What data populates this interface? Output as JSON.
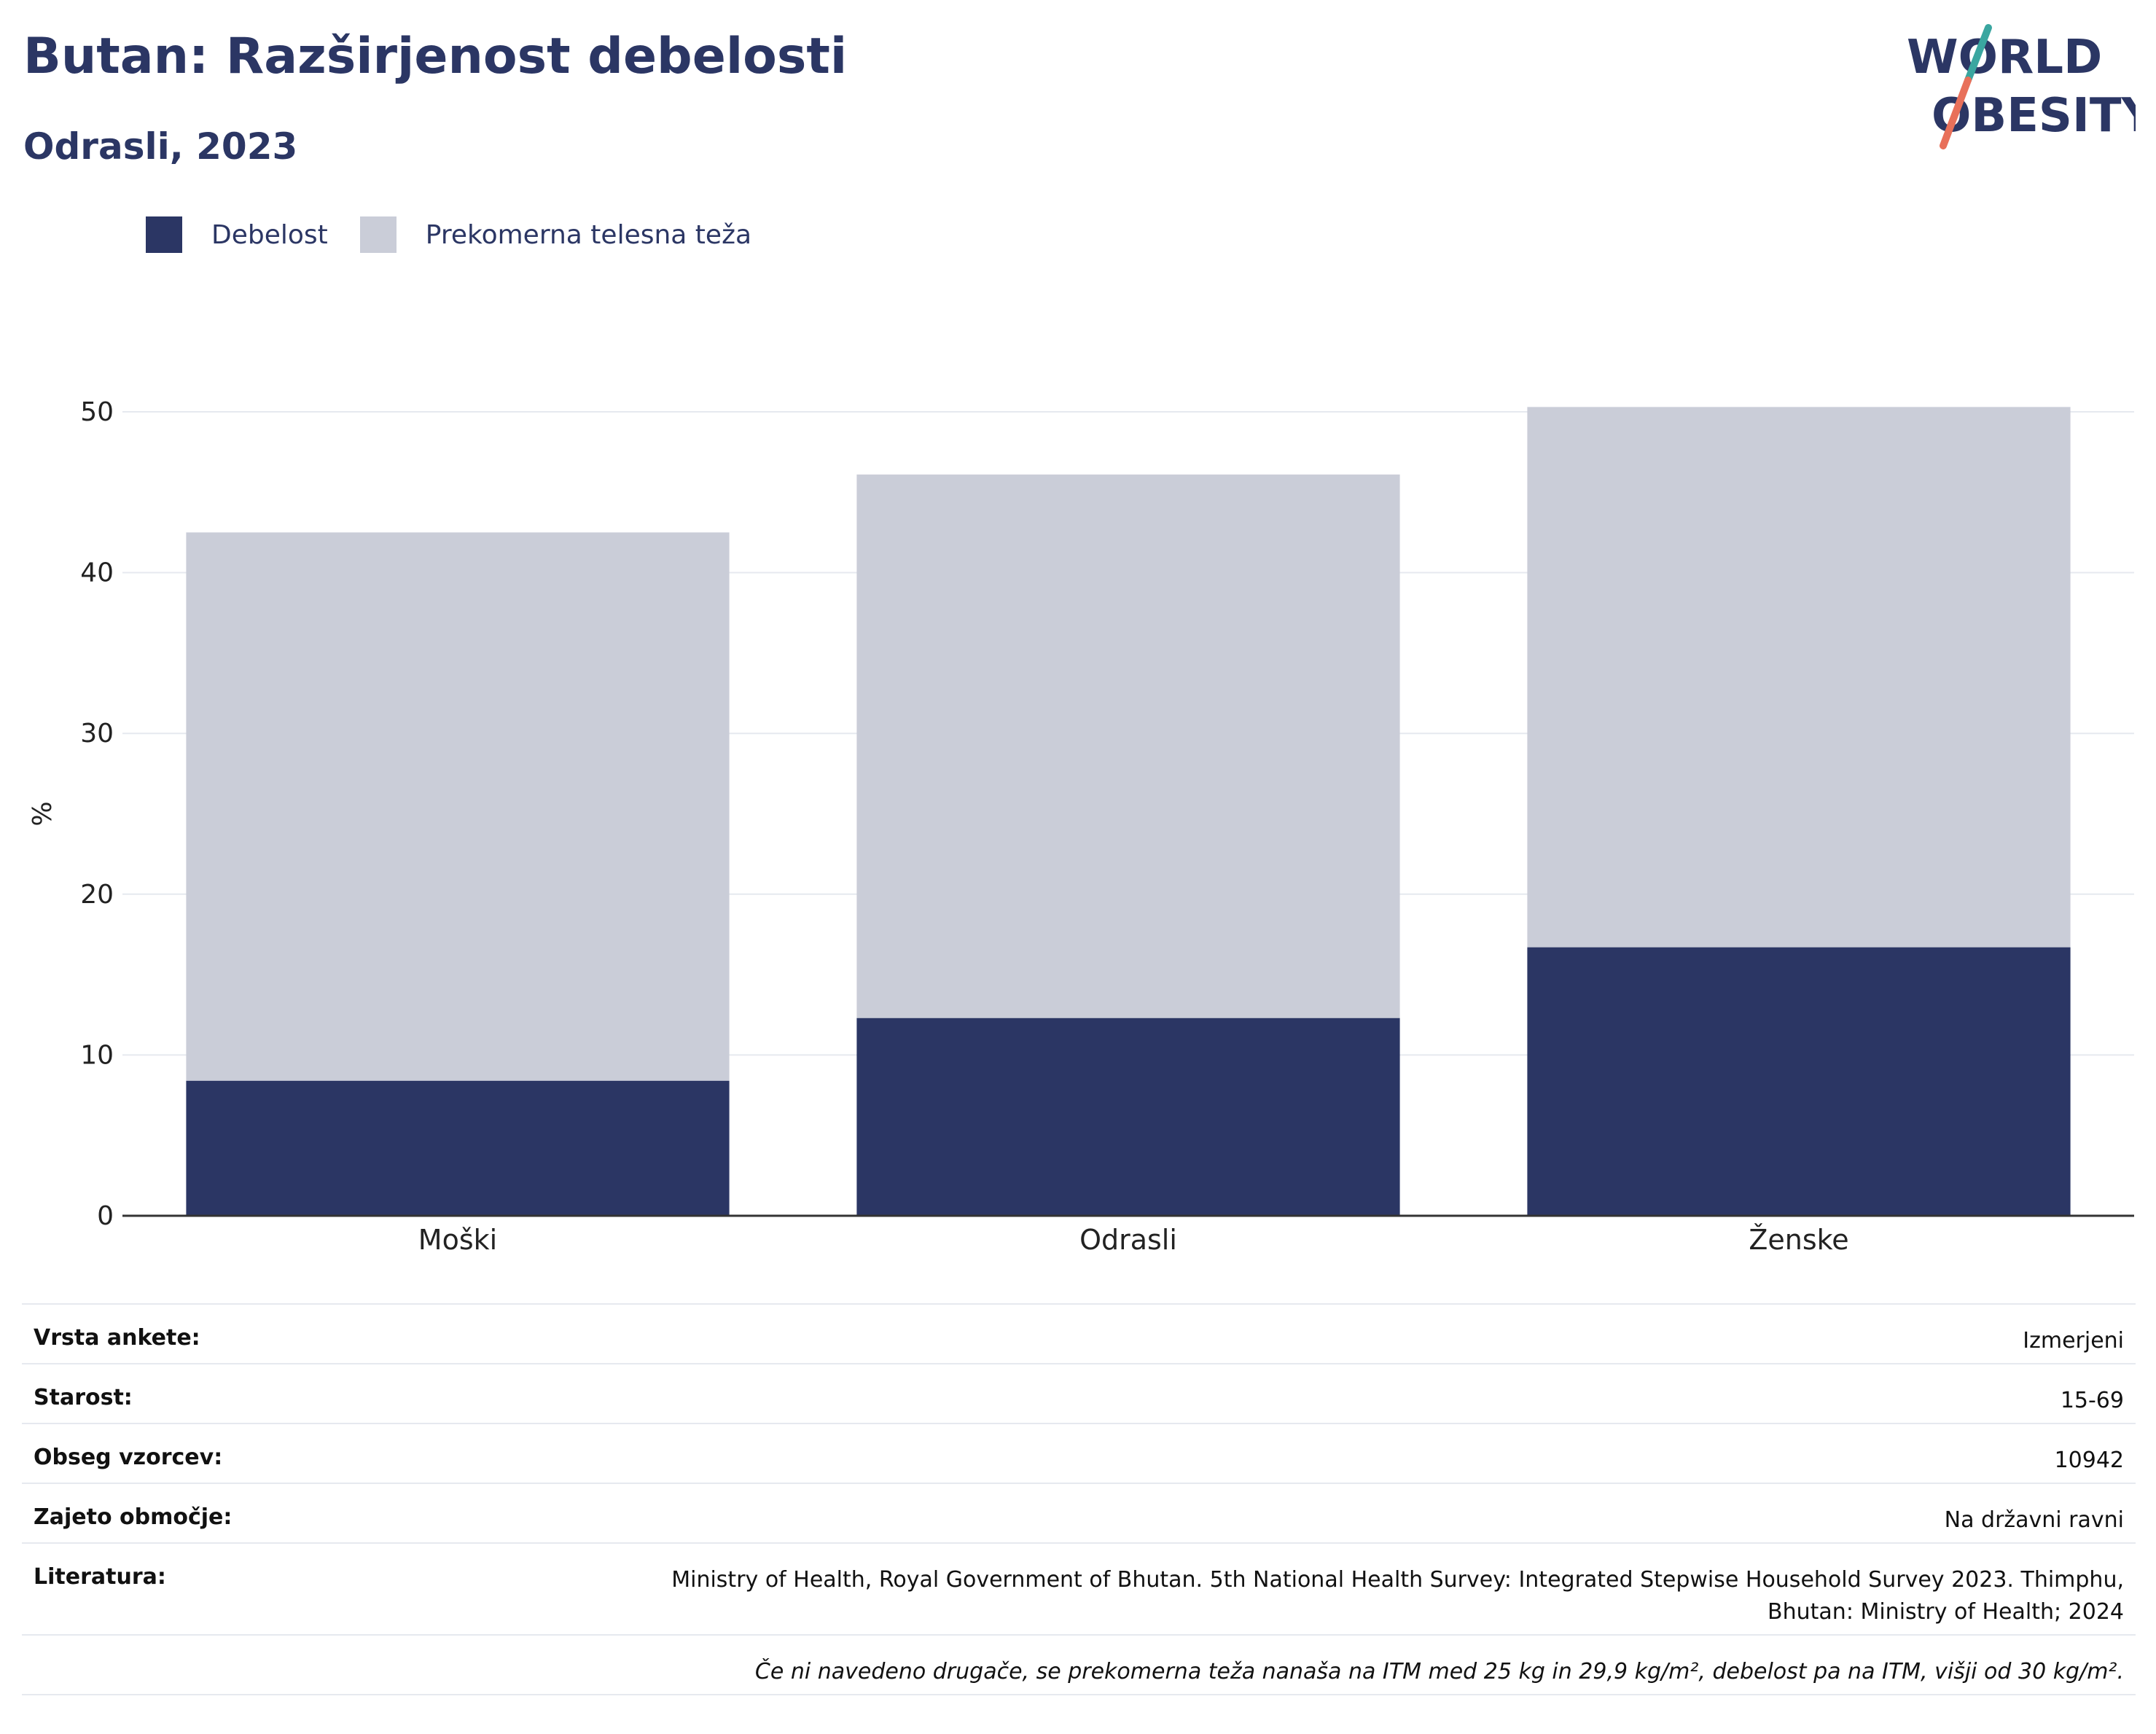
{
  "title": "Butan: Razširjenost debelosti",
  "subtitle": "Odrasli, 2023",
  "logo": {
    "line1": "WORLD",
    "line2": "OBESITY",
    "colors": [
      "#3aa6a0",
      "#e8705a"
    ]
  },
  "colors": {
    "obesity": "#2b3664",
    "overweight": "#cacdd8",
    "text": "#2b3664",
    "grid": "#e6e9ef"
  },
  "legend": [
    {
      "label": "Debelost",
      "color": "#2b3664"
    },
    {
      "label": "Prekomerna telesna teža",
      "color": "#cacdd8"
    }
  ],
  "chart_data": {
    "type": "bar",
    "stacked": true,
    "categories": [
      "Moški",
      "Odrasli",
      "Ženske"
    ],
    "series": [
      {
        "name": "Debelost",
        "color": "#2b3664",
        "values": [
          8.4,
          12.3,
          16.7
        ]
      },
      {
        "name": "Prekomerna telesna teža",
        "color": "#cacdd8",
        "values": [
          34.1,
          33.8,
          33.6
        ]
      }
    ],
    "ylabel": "%",
    "ylim": [
      0,
      50
    ],
    "yticks": [
      0,
      10,
      20,
      30,
      40,
      50
    ],
    "grid": true,
    "legend_position": "top-left"
  },
  "info": [
    {
      "key": "Vrsta ankete:",
      "value": "Izmerjeni"
    },
    {
      "key": "Starost:",
      "value": "15-69"
    },
    {
      "key": "Obseg vzorcev:",
      "value": "10942"
    },
    {
      "key": "Zajeto območje:",
      "value": "Na državni ravni"
    },
    {
      "key": "Literatura:",
      "value": "Ministry of Health, Royal Government of Bhutan. 5th National Health Survey: Integrated Stepwise Household Survey 2023. Thimphu, Bhutan: Ministry of Health; 2024"
    }
  ],
  "note": "Če ni navedeno drugače, se prekomerna teža nanaša na ITM med 25 kg in 29,9 kg/m², debelost pa na ITM, višji od 30 kg/m²."
}
